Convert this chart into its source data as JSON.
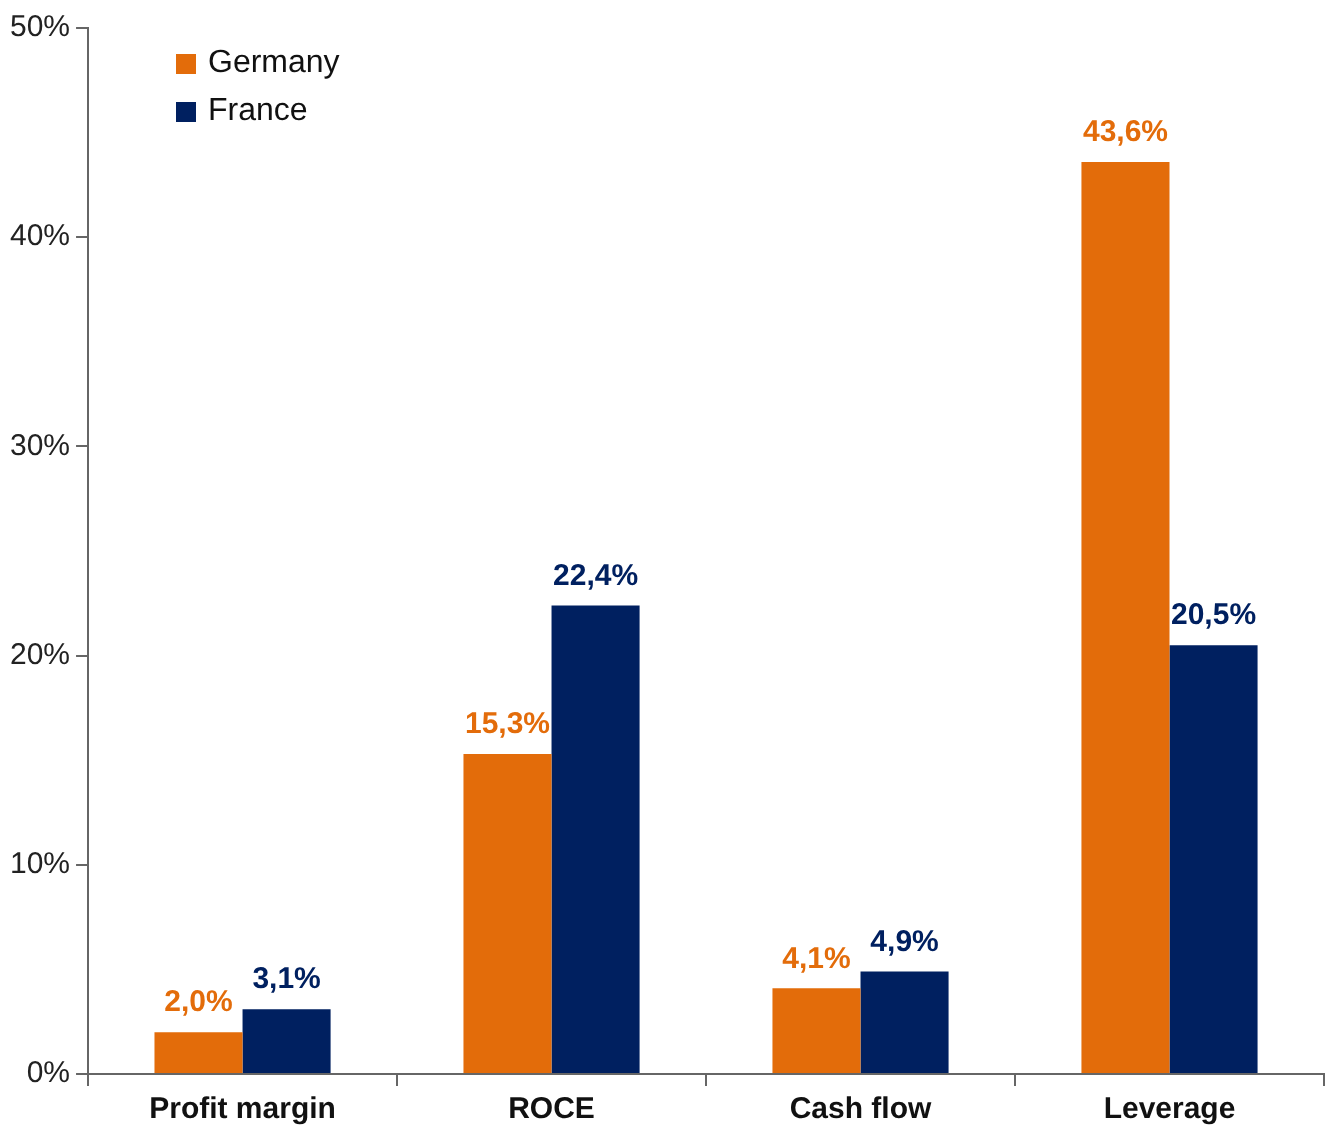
{
  "chart_data": {
    "type": "bar",
    "categories": [
      "Profit margin",
      "ROCE",
      "Cash flow",
      "Leverage"
    ],
    "series": [
      {
        "name": "Germany",
        "color": "#e36c0a",
        "values": [
          2.0,
          15.3,
          4.1,
          43.6
        ],
        "value_labels": [
          "2,0%",
          "15,3%",
          "4,1%",
          "43,6%"
        ]
      },
      {
        "name": "France",
        "color": "#002060",
        "values": [
          3.1,
          22.4,
          4.9,
          20.5
        ],
        "value_labels": [
          "3,1%",
          "22,4%",
          "4,9%",
          "20,5%"
        ]
      }
    ],
    "ylim": [
      0,
      50
    ],
    "yticks": [
      {
        "value": 0,
        "label": "0%"
      },
      {
        "value": 10,
        "label": "10%"
      },
      {
        "value": 20,
        "label": "20%"
      },
      {
        "value": 30,
        "label": "30%"
      },
      {
        "value": 40,
        "label": "40%"
      },
      {
        "value": 50,
        "label": "50%"
      }
    ],
    "grid": false,
    "legend": "top left"
  }
}
